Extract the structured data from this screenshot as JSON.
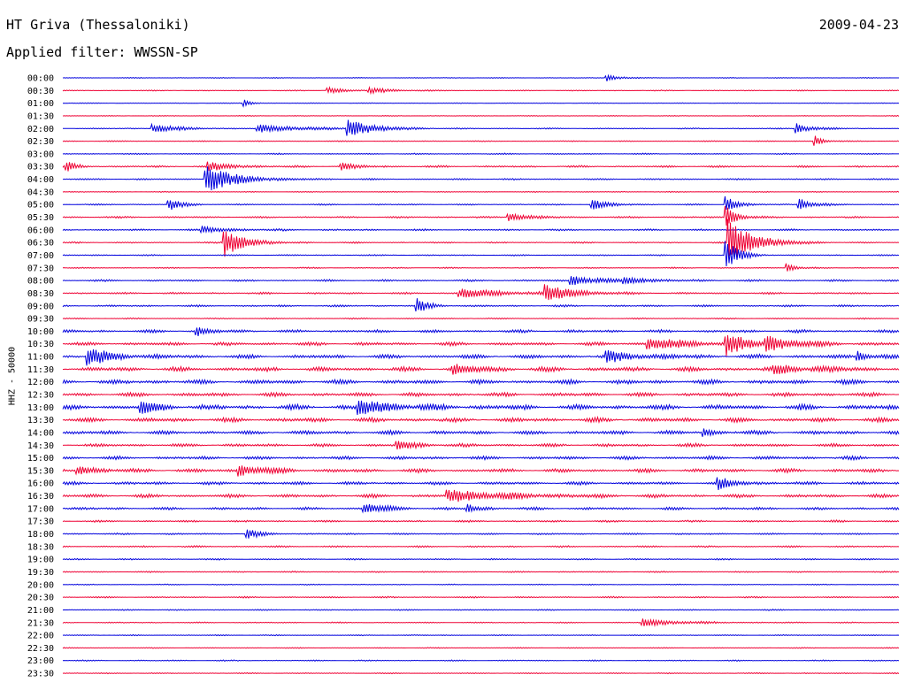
{
  "header": {
    "station": "HT Griva (Thessaloniki)",
    "date": "2009-04-23",
    "filter_label": "Applied filter: WWSSN-SP"
  },
  "colors": {
    "odd_trace": "#0000dd",
    "even_trace": "#ee0033"
  },
  "chart_data": {
    "type": "line",
    "ylabel": "HHZ - 50000",
    "row_labels": [
      "00:00",
      "00:30",
      "01:00",
      "01:30",
      "02:00",
      "02:30",
      "03:00",
      "03:30",
      "04:00",
      "04:30",
      "05:00",
      "05:30",
      "06:00",
      "06:30",
      "07:00",
      "07:30",
      "08:00",
      "08:30",
      "09:00",
      "09:30",
      "10:00",
      "10:30",
      "11:00",
      "11:30",
      "12:00",
      "12:30",
      "13:00",
      "13:30",
      "14:00",
      "14:30",
      "15:00",
      "15:30",
      "16:00",
      "16:30",
      "17:00",
      "17:30",
      "18:00",
      "18:30",
      "19:00",
      "19:30",
      "20:00",
      "20:30",
      "21:00",
      "21:30",
      "22:00",
      "22:30",
      "23:00",
      "23:30"
    ],
    "minutes_per_row": 30,
    "noise_levels": [
      0.3,
      0.4,
      0.3,
      0.3,
      0.5,
      0.4,
      0.5,
      0.8,
      0.6,
      0.4,
      0.6,
      0.7,
      0.7,
      0.6,
      0.5,
      0.5,
      0.8,
      0.8,
      0.8,
      0.5,
      1.2,
      1.4,
      1.6,
      1.8,
      1.8,
      1.6,
      2.0,
      1.8,
      1.6,
      1.3,
      1.4,
      1.5,
      1.3,
      1.4,
      1.1,
      0.8,
      0.7,
      0.7,
      0.6,
      0.5,
      0.4,
      0.6,
      0.5,
      0.5,
      0.4,
      0.4,
      0.5,
      0.4
    ],
    "events": [
      {
        "row": 0,
        "minute": 19.5,
        "amp": 4,
        "dur": 0.5
      },
      {
        "row": 1,
        "minute": 9.5,
        "amp": 4,
        "dur": 0.6
      },
      {
        "row": 1,
        "minute": 11,
        "amp": 3,
        "dur": 1
      },
      {
        "row": 2,
        "minute": 6.5,
        "amp": 4,
        "dur": 0.3
      },
      {
        "row": 4,
        "minute": 3.2,
        "amp": 5,
        "dur": 1
      },
      {
        "row": 4,
        "minute": 7,
        "amp": 4,
        "dur": 2
      },
      {
        "row": 4,
        "minute": 10.2,
        "amp": 10,
        "dur": 1
      },
      {
        "row": 4,
        "minute": 26.3,
        "amp": 6,
        "dur": 0.6
      },
      {
        "row": 5,
        "minute": 27,
        "amp": 6,
        "dur": 0.3
      },
      {
        "row": 7,
        "minute": 0.1,
        "amp": 6,
        "dur": 0.4
      },
      {
        "row": 7,
        "minute": 5.2,
        "amp": 5,
        "dur": 1
      },
      {
        "row": 7,
        "minute": 10,
        "amp": 4,
        "dur": 0.6
      },
      {
        "row": 8,
        "minute": 5.1,
        "amp": 16,
        "dur": 1.2
      },
      {
        "row": 10,
        "minute": 3.8,
        "amp": 7,
        "dur": 0.5
      },
      {
        "row": 10,
        "minute": 19,
        "amp": 6,
        "dur": 0.6
      },
      {
        "row": 10,
        "minute": 26.4,
        "amp": 8,
        "dur": 0.5
      },
      {
        "row": 10,
        "minute": 23.8,
        "amp": 10,
        "dur": 0.4
      },
      {
        "row": 11,
        "minute": 16,
        "amp": 5,
        "dur": 0.8
      },
      {
        "row": 11,
        "minute": 23.8,
        "amp": 14,
        "dur": 0.4
      },
      {
        "row": 12,
        "minute": 5,
        "amp": 4,
        "dur": 1
      },
      {
        "row": 13,
        "minute": 5.8,
        "amp": 16,
        "dur": 0.8
      },
      {
        "row": 13,
        "minute": 23.9,
        "amp": 26,
        "dur": 1
      },
      {
        "row": 14,
        "minute": 23.8,
        "amp": 18,
        "dur": 0.5
      },
      {
        "row": 15,
        "minute": 26,
        "amp": 6,
        "dur": 0.3
      },
      {
        "row": 16,
        "minute": 18.2,
        "amp": 6,
        "dur": 1
      },
      {
        "row": 16,
        "minute": 20.1,
        "amp": 4,
        "dur": 1
      },
      {
        "row": 17,
        "minute": 14.2,
        "amp": 5,
        "dur": 2
      },
      {
        "row": 17,
        "minute": 17.3,
        "amp": 10,
        "dur": 1
      },
      {
        "row": 18,
        "minute": 12.7,
        "amp": 8,
        "dur": 0.5
      },
      {
        "row": 20,
        "minute": 4.8,
        "amp": 5,
        "dur": 0.5
      },
      {
        "row": 21,
        "minute": 21,
        "amp": 6,
        "dur": 2
      },
      {
        "row": 21,
        "minute": 23.8,
        "amp": 12,
        "dur": 0.8
      },
      {
        "row": 21,
        "minute": 25.2,
        "amp": 8,
        "dur": 1.2
      },
      {
        "row": 22,
        "minute": 0.9,
        "amp": 10,
        "dur": 1
      },
      {
        "row": 22,
        "minute": 19.5,
        "amp": 5,
        "dur": 1.5
      },
      {
        "row": 22,
        "minute": 28.5,
        "amp": 6,
        "dur": 0.5
      },
      {
        "row": 23,
        "minute": 14,
        "amp": 5,
        "dur": 1
      },
      {
        "row": 23,
        "minute": 25.5,
        "amp": 5,
        "dur": 1.5
      },
      {
        "row": 26,
        "minute": 10.6,
        "amp": 8,
        "dur": 1.5
      },
      {
        "row": 26,
        "minute": 2.8,
        "amp": 6,
        "dur": 0.8
      },
      {
        "row": 28,
        "minute": 23,
        "amp": 5,
        "dur": 0.4
      },
      {
        "row": 29,
        "minute": 12,
        "amp": 4,
        "dur": 1
      },
      {
        "row": 31,
        "minute": 6.3,
        "amp": 6,
        "dur": 1
      },
      {
        "row": 31,
        "minute": 0.5,
        "amp": 5,
        "dur": 0.8
      },
      {
        "row": 32,
        "minute": 23.5,
        "amp": 6,
        "dur": 0.8
      },
      {
        "row": 33,
        "minute": 13.8,
        "amp": 6,
        "dur": 2.5
      },
      {
        "row": 34,
        "minute": 10.8,
        "amp": 6,
        "dur": 0.8
      },
      {
        "row": 34,
        "minute": 14.5,
        "amp": 5,
        "dur": 0.5
      },
      {
        "row": 36,
        "minute": 6.6,
        "amp": 6,
        "dur": 0.5
      },
      {
        "row": 43,
        "minute": 20.8,
        "amp": 4,
        "dur": 1.5
      }
    ]
  }
}
